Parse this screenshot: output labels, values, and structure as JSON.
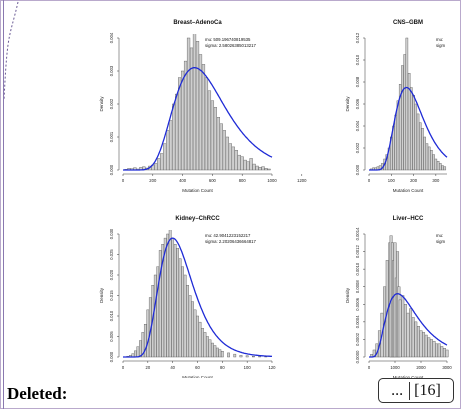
{
  "footer": {
    "deleted_label": "Deleted:",
    "ellipsis": "...",
    "ref_number": "[16]"
  },
  "colors": {
    "bars_fill": "#cfcfcf",
    "bars_stroke": "#555555",
    "curve": "#1f2bd6",
    "frame_border": "#8a79b0"
  },
  "chart_data": [
    {
      "type": "bar",
      "title": "Breast–AdenoCa",
      "xlabel": "Mutation Count",
      "ylabel": "Density",
      "annotation": [
        "mu: 509.196740819535",
        "sigma: 2.58026385013217"
      ],
      "xlim": [
        0,
        1000
      ],
      "ylim": [
        0,
        0.004
      ],
      "xticks": [
        "0",
        "200",
        "400",
        "600",
        "800",
        "1000",
        "1200"
      ],
      "yticks": [
        "0.000",
        "0.001",
        "0.002",
        "0.003",
        "0.004"
      ],
      "xtick_values": [
        0,
        200,
        400,
        600,
        800,
        1000,
        1200
      ],
      "ytick_values": [
        0,
        0.001,
        0.002,
        0.003,
        0.004
      ],
      "bins_x": [
        20,
        40,
        60,
        80,
        100,
        120,
        140,
        160,
        180,
        200,
        220,
        240,
        260,
        280,
        300,
        320,
        340,
        360,
        380,
        400,
        420,
        440,
        460,
        480,
        500,
        520,
        540,
        560,
        580,
        600,
        620,
        640,
        660,
        680,
        700,
        720,
        740,
        760,
        780,
        800,
        820,
        840,
        860,
        880,
        900,
        920,
        940,
        960,
        980
      ],
      "values": [
        2e-05,
        5e-05,
        4e-05,
        7e-05,
        3e-05,
        8e-05,
        0.0001,
        6e-05,
        0.00012,
        0.00015,
        0.0002,
        0.00035,
        0.0005,
        0.0008,
        0.0012,
        0.0015,
        0.002,
        0.0023,
        0.0028,
        0.003,
        0.0033,
        0.004,
        0.0037,
        0.0043,
        0.0039,
        0.0035,
        0.0032,
        0.0028,
        0.0024,
        0.0021,
        0.0019,
        0.0016,
        0.0014,
        0.0012,
        0.001,
        0.0008,
        0.0007,
        0.0006,
        0.00045,
        0.0004,
        0.0003,
        0.00025,
        0.00035,
        0.00018,
        0.00012,
        8e-05,
        0.0001,
        5e-05,
        3e-05
      ],
      "curve": {
        "distribution": "lognormal",
        "peak_x": 480,
        "peak_y": 0.0031,
        "sdlog": 0.36
      }
    },
    {
      "type": "bar",
      "title": "CNS–GBM",
      "xlabel": "Mutation Count",
      "ylabel": "Density",
      "annotation": [
        "mu:",
        "sigm"
      ],
      "xlim": [
        0,
        350
      ],
      "ylim": [
        0,
        0.012
      ],
      "xticks": [
        "0",
        "100",
        "200",
        "300"
      ],
      "yticks": [
        "0.000",
        "0.002",
        "0.004",
        "0.006",
        "0.008",
        "0.010",
        "0.012"
      ],
      "xtick_values": [
        0,
        100,
        200,
        300
      ],
      "ytick_values": [
        0,
        0.002,
        0.004,
        0.006,
        0.008,
        0.01,
        0.012
      ],
      "bins_x": [
        10,
        20,
        30,
        40,
        50,
        60,
        70,
        80,
        90,
        100,
        110,
        120,
        130,
        140,
        150,
        160,
        170,
        180,
        190,
        200,
        210,
        220,
        230,
        240,
        250,
        260,
        270,
        280,
        290,
        300,
        310,
        320,
        330,
        340
      ],
      "values": [
        0.0001,
        0.0002,
        0.0002,
        0.0003,
        0.0004,
        0.0006,
        0.001,
        0.0014,
        0.002,
        0.003,
        0.004,
        0.005,
        0.0063,
        0.0078,
        0.0095,
        0.0105,
        0.012,
        0.0088,
        0.0075,
        0.0068,
        0.006,
        0.0051,
        0.0043,
        0.0038,
        0.003,
        0.0024,
        0.0021,
        0.0018,
        0.0014,
        0.001,
        0.0008,
        0.0006,
        0.0004,
        0.0003
      ],
      "curve": {
        "distribution": "lognormal",
        "peak_x": 168,
        "peak_y": 0.0075,
        "sdlog": 0.38
      }
    },
    {
      "type": "bar",
      "title": "Kidney–ChRCC",
      "xlabel": "Mutation Count",
      "ylabel": "Density",
      "annotation": [
        "mu: 42.9041223152217",
        "sigma: 2.20206436664817"
      ],
      "xlim": [
        0,
        120
      ],
      "ylim": [
        0,
        0.03
      ],
      "xticks": [
        "0",
        "20",
        "40",
        "60",
        "80",
        "100",
        "120"
      ],
      "yticks": [
        "0.000",
        "0.005",
        "0.010",
        "0.015",
        "0.020",
        "0.025",
        "0.030"
      ],
      "xtick_values": [
        0,
        20,
        40,
        60,
        80,
        100,
        120
      ],
      "ytick_values": [
        0,
        0.005,
        0.01,
        0.015,
        0.02,
        0.025,
        0.03
      ],
      "bins_x": [
        4,
        6,
        8,
        10,
        12,
        14,
        16,
        18,
        20,
        22,
        24,
        26,
        28,
        30,
        32,
        34,
        36,
        38,
        40,
        42,
        44,
        46,
        48,
        50,
        52,
        54,
        56,
        58,
        60,
        62,
        64,
        66,
        68,
        70,
        72,
        74,
        76,
        78,
        80,
        85,
        90,
        95,
        100,
        105,
        110,
        115
      ],
      "values": [
        0.0002,
        0.0004,
        0.0008,
        0.0015,
        0.0025,
        0.004,
        0.006,
        0.008,
        0.0115,
        0.0145,
        0.0175,
        0.02,
        0.022,
        0.026,
        0.0275,
        0.029,
        0.03,
        0.031,
        0.029,
        0.0275,
        0.0265,
        0.024,
        0.022,
        0.02,
        0.0175,
        0.015,
        0.0135,
        0.0115,
        0.01,
        0.0085,
        0.007,
        0.006,
        0.005,
        0.0042,
        0.0034,
        0.0028,
        0.0022,
        0.0018,
        0.0014,
        0.001,
        0.0007,
        0.0004,
        0.0003,
        0.0002,
        0.00015,
        0.0001
      ],
      "curve": {
        "distribution": "lognormal",
        "peak_x": 40,
        "peak_y": 0.029,
        "sdlog": 0.34
      }
    },
    {
      "type": "bar",
      "title": "Liver–HCC",
      "xlabel": "Mutation Count",
      "ylabel": "Density",
      "annotation": [
        "mu:",
        "sigm"
      ],
      "xlim": [
        0,
        3000
      ],
      "ylim": [
        0,
        0.0014
      ],
      "xticks": [
        "0",
        "1000",
        "2000",
        "3000"
      ],
      "yticks": [
        "0.0000",
        "0.0002",
        "0.0004",
        "0.0006",
        "0.0008",
        "0.0010",
        "0.0012",
        "0.0014"
      ],
      "xtick_values": [
        0,
        1000,
        2000,
        3000
      ],
      "ytick_values": [
        0,
        0.0002,
        0.0004,
        0.0006,
        0.0008,
        0.001,
        0.0012,
        0.0014
      ],
      "bins_x": [
        100,
        200,
        300,
        400,
        500,
        600,
        700,
        800,
        850,
        900,
        950,
        1000,
        1050,
        1100,
        1150,
        1200,
        1300,
        1400,
        1500,
        1600,
        1700,
        1800,
        1900,
        2000,
        2100,
        2200,
        2300,
        2400,
        2500,
        2600,
        2700,
        2800,
        2900,
        3000
      ],
      "values": [
        3e-05,
        8e-05,
        0.00015,
        0.0003,
        0.0005,
        0.0008,
        0.0011,
        0.0013,
        0.00138,
        0.0013,
        0.0011,
        0.0013,
        0.0009,
        0.0012,
        0.0008,
        0.00065,
        0.0007,
        0.0006,
        0.0005,
        0.00055,
        0.00045,
        0.0004,
        0.00035,
        0.0003,
        0.00028,
        0.00025,
        0.00022,
        0.0002,
        0.00018,
        0.00015,
        0.00015,
        0.00012,
        0.0001,
        8e-05
      ],
      "curve": {
        "distribution": "lognormal",
        "peak_x": 1100,
        "peak_y": 0.00072,
        "sdlog": 0.55
      }
    }
  ]
}
